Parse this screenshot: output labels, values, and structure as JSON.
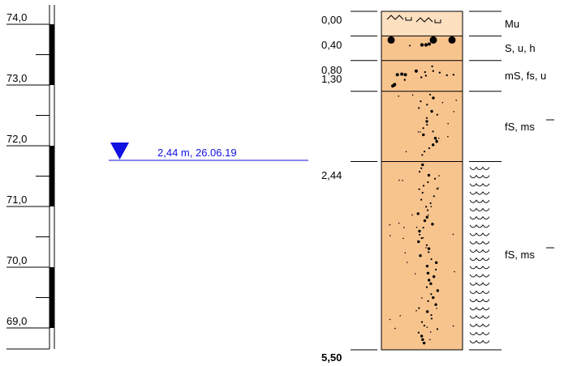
{
  "elevation_scale": {
    "ticks": [
      "74,0",
      "73,0",
      "72,0",
      "71,0",
      "70,0",
      "69,0"
    ]
  },
  "water_level": {
    "label": "2,44 m, 26.06.19",
    "color": "#1010e0"
  },
  "boring": {
    "depths": [
      "0,00",
      "0,40",
      "0,80",
      "1,30",
      "2,44",
      "5,50"
    ],
    "colors": {
      "topsoil": "#fde0c0",
      "sand": "#f8c48e",
      "outline": "#000000"
    },
    "layers": [
      {
        "top": 0.0,
        "bottom": 0.4,
        "soil": "Mu",
        "pattern": "topsoil"
      },
      {
        "top": 0.4,
        "bottom": 0.8,
        "soil": "S, u, h",
        "pattern": "coarse"
      },
      {
        "top": 0.8,
        "bottom": 1.3,
        "soil": "mS, fs, u",
        "pattern": "medium"
      },
      {
        "top": 1.3,
        "bottom": 2.44,
        "soil": "fS, ms",
        "pattern": "fine"
      },
      {
        "top": 2.44,
        "bottom": 5.5,
        "soil": "fS, ms",
        "pattern": "fine",
        "wet": true
      }
    ]
  }
}
